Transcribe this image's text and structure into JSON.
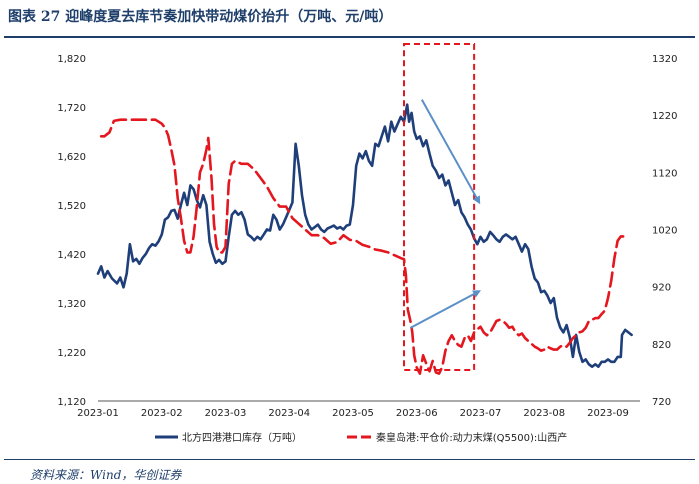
{
  "title": "图表 27  迎峰度夏去库节奏加快带动煤价抬升（万吨、元/吨）",
  "source": "资料来源：Wind，华创证券",
  "chart_data": {
    "type": "line",
    "title": "迎峰度夏去库节奏加快带动煤价抬升（万吨、元/吨）",
    "x_labels": [
      "2023-01",
      "2023-02",
      "2023-03",
      "2023-04",
      "2023-05",
      "2023-06",
      "2023-07",
      "2023-08",
      "2023-09"
    ],
    "y_left": {
      "min": 1120,
      "max": 1820,
      "ticks": [
        "1,120",
        "1,220",
        "1,320",
        "1,420",
        "1,520",
        "1,620",
        "1,720",
        "1,820"
      ],
      "tick_values": [
        1120,
        1220,
        1320,
        1420,
        1520,
        1620,
        1720,
        1820
      ]
    },
    "y_right": {
      "min": 720,
      "max": 1320,
      "ticks": [
        "720",
        "820",
        "920",
        "1020",
        "1120",
        "1220",
        "1320"
      ],
      "tick_values": [
        720,
        820,
        920,
        1020,
        1120,
        1220,
        1320
      ]
    },
    "series": [
      {
        "name": "北方四港港口库存（万吨）",
        "axis": "left",
        "color": "#1f3f7a",
        "style": "solid",
        "points": [
          [
            0.0,
            1380
          ],
          [
            0.05,
            1395
          ],
          [
            0.1,
            1372
          ],
          [
            0.15,
            1385
          ],
          [
            0.22,
            1370
          ],
          [
            0.3,
            1360
          ],
          [
            0.35,
            1372
          ],
          [
            0.4,
            1352
          ],
          [
            0.45,
            1380
          ],
          [
            0.5,
            1440
          ],
          [
            0.55,
            1405
          ],
          [
            0.6,
            1410
          ],
          [
            0.65,
            1400
          ],
          [
            0.7,
            1412
          ],
          [
            0.75,
            1420
          ],
          [
            0.8,
            1432
          ],
          [
            0.85,
            1440
          ],
          [
            0.9,
            1437
          ],
          [
            0.95,
            1446
          ],
          [
            1.0,
            1460
          ],
          [
            1.05,
            1490
          ],
          [
            1.1,
            1495
          ],
          [
            1.15,
            1508
          ],
          [
            1.2,
            1510
          ],
          [
            1.25,
            1492
          ],
          [
            1.3,
            1520
          ],
          [
            1.35,
            1545
          ],
          [
            1.4,
            1520
          ],
          [
            1.45,
            1560
          ],
          [
            1.5,
            1552
          ],
          [
            1.55,
            1530
          ],
          [
            1.6,
            1515
          ],
          [
            1.65,
            1540
          ],
          [
            1.7,
            1520
          ],
          [
            1.75,
            1445
          ],
          [
            1.8,
            1420
          ],
          [
            1.85,
            1402
          ],
          [
            1.9,
            1408
          ],
          [
            1.95,
            1400
          ],
          [
            2.0,
            1405
          ],
          [
            2.05,
            1455
          ],
          [
            2.1,
            1500
          ],
          [
            2.15,
            1508
          ],
          [
            2.2,
            1500
          ],
          [
            2.25,
            1505
          ],
          [
            2.3,
            1490
          ],
          [
            2.35,
            1460
          ],
          [
            2.4,
            1455
          ],
          [
            2.45,
            1448
          ],
          [
            2.5,
            1455
          ],
          [
            2.55,
            1450
          ],
          [
            2.6,
            1460
          ],
          [
            2.65,
            1470
          ],
          [
            2.7,
            1468
          ],
          [
            2.75,
            1500
          ],
          [
            2.8,
            1490
          ],
          [
            2.85,
            1470
          ],
          [
            2.9,
            1480
          ],
          [
            2.95,
            1495
          ],
          [
            3.0,
            1510
          ],
          [
            3.05,
            1525
          ],
          [
            3.1,
            1645
          ],
          [
            3.15,
            1600
          ],
          [
            3.2,
            1540
          ],
          [
            3.25,
            1500
          ],
          [
            3.3,
            1480
          ],
          [
            3.35,
            1470
          ],
          [
            3.4,
            1475
          ],
          [
            3.45,
            1480
          ],
          [
            3.5,
            1470
          ],
          [
            3.55,
            1465
          ],
          [
            3.6,
            1472
          ],
          [
            3.65,
            1475
          ],
          [
            3.7,
            1478
          ],
          [
            3.75,
            1472
          ],
          [
            3.8,
            1475
          ],
          [
            3.85,
            1470
          ],
          [
            3.9,
            1478
          ],
          [
            3.95,
            1480
          ],
          [
            4.0,
            1520
          ],
          [
            4.05,
            1600
          ],
          [
            4.1,
            1625
          ],
          [
            4.15,
            1615
          ],
          [
            4.2,
            1630
          ],
          [
            4.25,
            1610
          ],
          [
            4.3,
            1600
          ],
          [
            4.35,
            1645
          ],
          [
            4.4,
            1640
          ],
          [
            4.45,
            1660
          ],
          [
            4.5,
            1680
          ],
          [
            4.55,
            1650
          ],
          [
            4.6,
            1690
          ],
          [
            4.65,
            1670
          ],
          [
            4.7,
            1685
          ],
          [
            4.75,
            1700
          ],
          [
            4.8,
            1690
          ],
          [
            4.85,
            1725
          ],
          [
            4.88,
            1690
          ],
          [
            4.92,
            1708
          ],
          [
            4.96,
            1670
          ],
          [
            5.0,
            1655
          ],
          [
            5.05,
            1660
          ],
          [
            5.1,
            1640
          ],
          [
            5.15,
            1652
          ],
          [
            5.2,
            1625
          ],
          [
            5.25,
            1600
          ],
          [
            5.3,
            1590
          ],
          [
            5.35,
            1575
          ],
          [
            5.4,
            1582
          ],
          [
            5.45,
            1560
          ],
          [
            5.5,
            1570
          ],
          [
            5.55,
            1545
          ],
          [
            5.6,
            1520
          ],
          [
            5.65,
            1530
          ],
          [
            5.7,
            1505
          ],
          [
            5.75,
            1495
          ],
          [
            5.8,
            1480
          ],
          [
            5.85,
            1470
          ],
          [
            5.9,
            1452
          ],
          [
            5.95,
            1440
          ],
          [
            6.0,
            1455
          ],
          [
            6.05,
            1445
          ],
          [
            6.1,
            1450
          ],
          [
            6.15,
            1465
          ],
          [
            6.2,
            1458
          ],
          [
            6.25,
            1450
          ],
          [
            6.3,
            1445
          ],
          [
            6.35,
            1455
          ],
          [
            6.4,
            1460
          ],
          [
            6.45,
            1455
          ],
          [
            6.5,
            1450
          ],
          [
            6.55,
            1455
          ],
          [
            6.6,
            1440
          ],
          [
            6.65,
            1425
          ],
          [
            6.7,
            1440
          ],
          [
            6.75,
            1430
          ],
          [
            6.8,
            1395
          ],
          [
            6.85,
            1370
          ],
          [
            6.9,
            1362
          ],
          [
            6.95,
            1342
          ],
          [
            7.0,
            1345
          ],
          [
            7.05,
            1335
          ],
          [
            7.1,
            1320
          ],
          [
            7.15,
            1330
          ],
          [
            7.2,
            1290
          ],
          [
            7.25,
            1270
          ],
          [
            7.3,
            1260
          ],
          [
            7.35,
            1275
          ],
          [
            7.4,
            1250
          ],
          [
            7.45,
            1210
          ],
          [
            7.5,
            1255
          ],
          [
            7.55,
            1220
          ],
          [
            7.6,
            1200
          ],
          [
            7.65,
            1205
          ],
          [
            7.7,
            1195
          ],
          [
            7.75,
            1190
          ],
          [
            7.8,
            1195
          ],
          [
            7.85,
            1190
          ],
          [
            7.9,
            1200
          ],
          [
            7.95,
            1200
          ],
          [
            8.0,
            1205
          ],
          [
            8.05,
            1200
          ],
          [
            8.1,
            1200
          ],
          [
            8.15,
            1210
          ],
          [
            8.2,
            1210
          ],
          [
            8.22,
            1255
          ],
          [
            8.27,
            1265
          ],
          [
            8.32,
            1260
          ],
          [
            8.37,
            1255
          ]
        ]
      },
      {
        "name": "秦皇岛港:平仓价:动力末煤(Q5500):山西产",
        "axis": "right",
        "color": "#e4161e",
        "style": "dashed",
        "points": [
          [
            0.05,
            1183
          ],
          [
            0.1,
            1183
          ],
          [
            0.18,
            1190
          ],
          [
            0.25,
            1210
          ],
          [
            0.35,
            1212
          ],
          [
            0.5,
            1212
          ],
          [
            0.7,
            1212
          ],
          [
            0.9,
            1212
          ],
          [
            1.0,
            1205
          ],
          [
            1.05,
            1198
          ],
          [
            1.1,
            1185
          ],
          [
            1.15,
            1160
          ],
          [
            1.2,
            1132
          ],
          [
            1.25,
            1075
          ],
          [
            1.3,
            1040
          ],
          [
            1.35,
            1000
          ],
          [
            1.4,
            980
          ],
          [
            1.45,
            980
          ],
          [
            1.5,
            1008
          ],
          [
            1.55,
            1060
          ],
          [
            1.6,
            1120
          ],
          [
            1.65,
            1135
          ],
          [
            1.7,
            1160
          ],
          [
            1.73,
            1180
          ],
          [
            1.78,
            1110
          ],
          [
            1.82,
            1030
          ],
          [
            1.86,
            990
          ],
          [
            1.9,
            980
          ],
          [
            1.95,
            980
          ],
          [
            2.0,
            990
          ],
          [
            2.05,
            1100
          ],
          [
            2.1,
            1135
          ],
          [
            2.15,
            1140
          ],
          [
            2.25,
            1135
          ],
          [
            2.35,
            1135
          ],
          [
            2.45,
            1125
          ],
          [
            2.55,
            1110
          ],
          [
            2.65,
            1095
          ],
          [
            2.75,
            1075
          ],
          [
            2.85,
            1060
          ],
          [
            2.95,
            1060
          ],
          [
            3.05,
            1040
          ],
          [
            3.15,
            1030
          ],
          [
            3.25,
            1020
          ],
          [
            3.35,
            1010
          ],
          [
            3.45,
            1010
          ],
          [
            3.55,
            1005
          ],
          [
            3.65,
            995
          ],
          [
            3.75,
            998
          ],
          [
            3.85,
            1010
          ],
          [
            3.95,
            1002
          ],
          [
            4.05,
            1000
          ],
          [
            4.15,
            993
          ],
          [
            4.25,
            990
          ],
          [
            4.35,
            985
          ],
          [
            4.45,
            983
          ],
          [
            4.55,
            980
          ],
          [
            4.65,
            975
          ],
          [
            4.75,
            970
          ],
          [
            4.8,
            968
          ],
          [
            4.83,
            940
          ],
          [
            4.86,
            880
          ],
          [
            4.9,
            860
          ],
          [
            4.93,
            840
          ],
          [
            4.96,
            800
          ],
          [
            5.0,
            778
          ],
          [
            5.05,
            768
          ],
          [
            5.1,
            800
          ],
          [
            5.15,
            785
          ],
          [
            5.2,
            772
          ],
          [
            5.25,
            790
          ],
          [
            5.3,
            770
          ],
          [
            5.35,
            768
          ],
          [
            5.4,
            780
          ],
          [
            5.45,
            808
          ],
          [
            5.5,
            825
          ],
          [
            5.55,
            835
          ],
          [
            5.6,
            825
          ],
          [
            5.65,
            818
          ],
          [
            5.7,
            815
          ],
          [
            5.75,
            830
          ],
          [
            5.8,
            835
          ],
          [
            5.85,
            825
          ],
          [
            5.9,
            840
          ],
          [
            5.95,
            845
          ],
          [
            6.0,
            850
          ],
          [
            6.05,
            840
          ],
          [
            6.1,
            835
          ],
          [
            6.15,
            840
          ],
          [
            6.2,
            850
          ],
          [
            6.25,
            860
          ],
          [
            6.3,
            862
          ],
          [
            6.35,
            860
          ],
          [
            6.4,
            855
          ],
          [
            6.45,
            848
          ],
          [
            6.5,
            850
          ],
          [
            6.55,
            840
          ],
          [
            6.6,
            835
          ],
          [
            6.65,
            838
          ],
          [
            6.7,
            830
          ],
          [
            6.75,
            825
          ],
          [
            6.8,
            820
          ],
          [
            6.85,
            815
          ],
          [
            6.9,
            812
          ],
          [
            6.95,
            808
          ],
          [
            7.0,
            810
          ],
          [
            7.05,
            815
          ],
          [
            7.1,
            812
          ],
          [
            7.15,
            810
          ],
          [
            7.2,
            810
          ],
          [
            7.25,
            815
          ],
          [
            7.3,
            818
          ],
          [
            7.35,
            815
          ],
          [
            7.4,
            822
          ],
          [
            7.45,
            830
          ],
          [
            7.5,
            835
          ],
          [
            7.55,
            840
          ],
          [
            7.6,
            842
          ],
          [
            7.65,
            848
          ],
          [
            7.7,
            860
          ],
          [
            7.75,
            862
          ],
          [
            7.8,
            865
          ],
          [
            7.85,
            865
          ],
          [
            7.9,
            872
          ],
          [
            7.95,
            878
          ],
          [
            8.0,
            900
          ],
          [
            8.05,
            930
          ],
          [
            8.1,
            970
          ],
          [
            8.15,
            1000
          ],
          [
            8.2,
            1008
          ],
          [
            8.25,
            1008
          ]
        ]
      }
    ],
    "annotations": [
      {
        "type": "highlight-box",
        "x_range": [
          4.8,
          5.9
        ],
        "color": "#e4161e",
        "style": "dashed"
      },
      {
        "type": "arrow",
        "from": [
          5.08,
          1735
        ],
        "to": [
          5.98,
          1525
        ],
        "axis": "left",
        "color": "#5b8fc7"
      },
      {
        "type": "arrow",
        "from": [
          4.9,
          848
        ],
        "to": [
          5.98,
          912
        ],
        "axis": "right",
        "color": "#5b8fc7"
      }
    ]
  }
}
